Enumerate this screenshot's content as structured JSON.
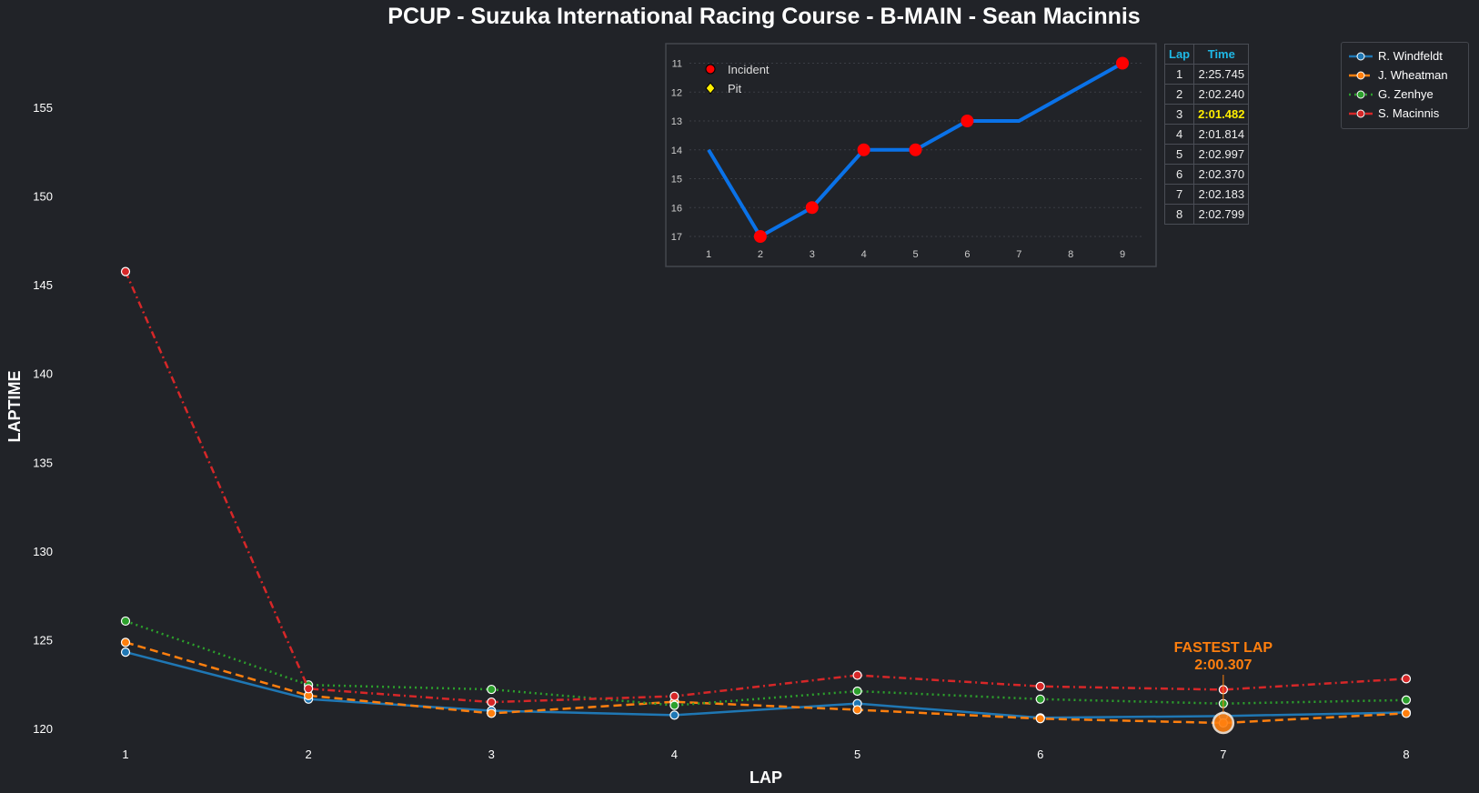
{
  "chart_data": [
    {
      "type": "line",
      "title": "PCUP - Suzuka International Racing Course - B-MAIN - Sean Macinnis",
      "xlabel": "LAP",
      "ylabel": "LAPTIME",
      "x": [
        1,
        2,
        3,
        4,
        5,
        6,
        7,
        8
      ],
      "x_ticks": [
        "1",
        "2",
        "3",
        "4",
        "5",
        "6",
        "7",
        "8"
      ],
      "y_ticks": [
        "120",
        "125",
        "130",
        "135",
        "140",
        "145",
        "150",
        "155"
      ],
      "ylim": [
        119,
        158
      ],
      "legend_position": "top-right",
      "series": [
        {
          "name": "R. Windfeldt",
          "color": "#1f77b4",
          "style": "solid",
          "values": [
            124.3,
            121.65,
            121.0,
            120.75,
            121.4,
            120.6,
            120.7,
            120.9
          ]
        },
        {
          "name": "J. Wheatman",
          "color": "#ff7f0e",
          "style": "dashed",
          "values": [
            124.85,
            121.85,
            120.85,
            121.5,
            121.05,
            120.55,
            120.307,
            120.85
          ]
        },
        {
          "name": "G. Zenhye",
          "color": "#2ca02c",
          "style": "dotted",
          "values": [
            126.05,
            122.45,
            122.2,
            121.3,
            122.1,
            121.65,
            121.4,
            121.6
          ]
        },
        {
          "name": "S. Macinnis",
          "color": "#d62728",
          "style": "dashdot",
          "values": [
            145.745,
            122.24,
            121.482,
            121.814,
            122.997,
            122.37,
            122.183,
            122.799
          ]
        }
      ],
      "annotation": {
        "label": "FASTEST LAP",
        "time": "2:00.307",
        "lap": 7,
        "value": 120.307,
        "color": "#ff7f0e"
      }
    },
    {
      "type": "line",
      "title": "",
      "x": [
        1,
        2,
        3,
        4,
        5,
        6,
        7,
        8,
        9
      ],
      "x_ticks": [
        "1",
        "2",
        "3",
        "4",
        "5",
        "6",
        "7",
        "8",
        "9"
      ],
      "y_ticks": [
        "11",
        "12",
        "13",
        "14",
        "15",
        "16",
        "17"
      ],
      "ylim": [
        17.3,
        10.7
      ],
      "y_inverted": true,
      "series": [
        {
          "name": "Position",
          "color": "#0a72e8",
          "values": [
            14,
            17,
            16,
            14,
            14,
            13,
            13,
            12,
            11
          ]
        }
      ],
      "incident_laps": [
        2,
        3,
        4,
        5,
        6,
        9
      ],
      "pit_laps": [],
      "legend": [
        {
          "label": "Incident",
          "marker": "circle",
          "color": "#ff0000"
        },
        {
          "label": "Pit",
          "marker": "diamond",
          "color": "#ffee00"
        }
      ]
    }
  ],
  "lap_table": {
    "headers": [
      "Lap",
      "Time"
    ],
    "rows": [
      [
        "1",
        "2:25.745"
      ],
      [
        "2",
        "2:02.240"
      ],
      [
        "3",
        "2:01.482"
      ],
      [
        "4",
        "2:01.814"
      ],
      [
        "5",
        "2:02.997"
      ],
      [
        "6",
        "2:02.370"
      ],
      [
        "7",
        "2:02.183"
      ],
      [
        "8",
        "2:02.799"
      ]
    ],
    "best_row": 2
  }
}
